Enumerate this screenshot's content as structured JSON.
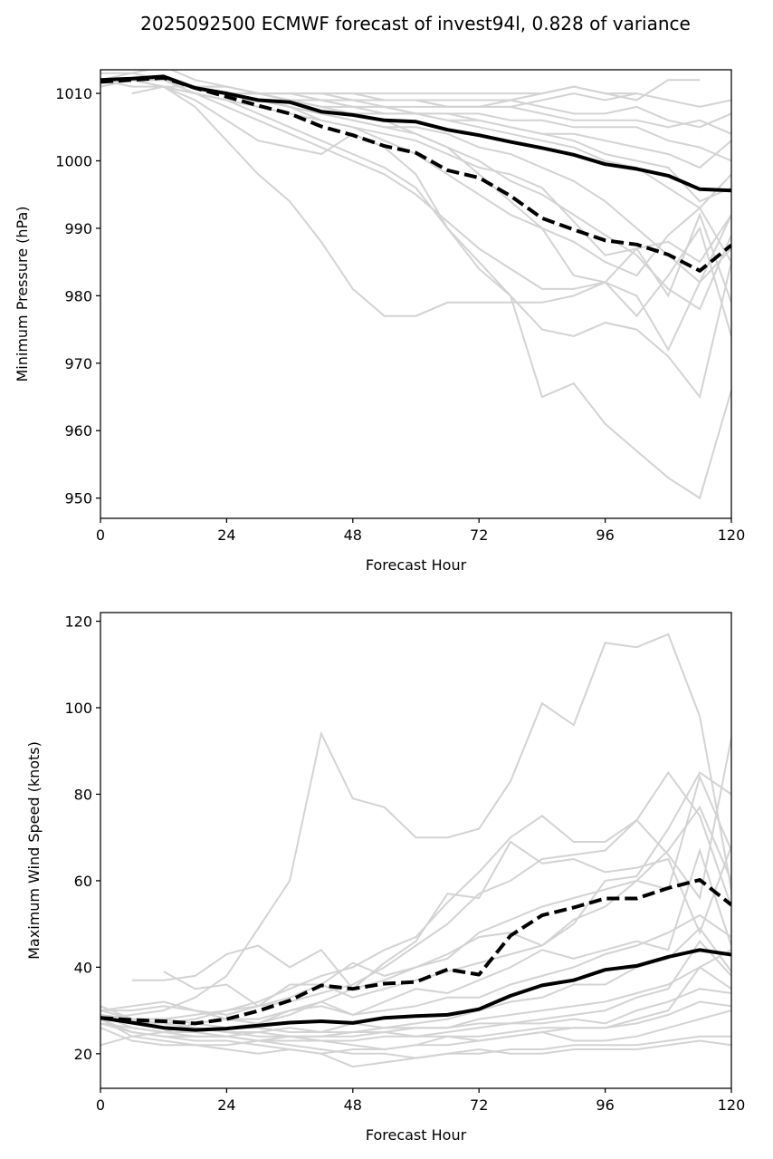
{
  "chart_data": [
    {
      "type": "line",
      "title": "2025092500 ECMWF forecast of invest94l, 0.828 of variance",
      "xlabel": "Forecast Hour",
      "ylabel": "Minimum Pressure (hPa)",
      "xlim": [
        0,
        120
      ],
      "ylim": [
        947,
        1013.5
      ],
      "xticks": [
        0,
        24,
        48,
        72,
        96,
        120
      ],
      "yticks": [
        950,
        960,
        970,
        980,
        990,
        1000,
        1010
      ],
      "grid": false,
      "x": [
        0,
        6,
        12,
        18,
        24,
        30,
        36,
        42,
        48,
        54,
        60,
        66,
        72,
        78,
        84,
        90,
        96,
        102,
        108,
        114,
        120
      ],
      "highlight_series": [
        {
          "name": "ensemble-solid",
          "style": "solid",
          "values": [
            1012,
            1012.2,
            1012.5,
            1010.8,
            1010,
            1009,
            1008.7,
            1007.3,
            1006.8,
            1006,
            1005.8,
            1004.6,
            1003.8,
            1002.8,
            1001.9,
            1000.9,
            999.5,
            998.8,
            997.8,
            995.8,
            995.6
          ]
        },
        {
          "name": "ensemble-dashed",
          "style": "dashed",
          "values": [
            1011.7,
            1012,
            1012.3,
            1010.8,
            1009.5,
            1008.2,
            1007,
            1005.1,
            1003.8,
            1002.2,
            1001.2,
            998.6,
            997.5,
            994.8,
            991.5,
            989.8,
            988.2,
            987.6,
            986.1,
            983.7,
            987.5
          ]
        }
      ],
      "member_series": [
        {
          "values": [
            1012,
            1011,
            1011,
            1010,
            1009,
            1007,
            1005,
            1003,
            1001,
            999,
            996,
            990,
            984,
            980,
            965,
            967,
            961,
            957,
            953,
            950,
            966
          ]
        },
        {
          "values": [
            1012,
            1012,
            1011,
            1008,
            1003,
            998,
            994,
            988,
            981,
            977,
            977,
            979,
            979,
            979,
            979,
            980,
            982,
            980,
            972,
            982,
            987
          ]
        },
        {
          "values": [
            1012,
            1012,
            1011,
            1009,
            1006,
            1003,
            1002,
            1001,
            1004,
            1002,
            998,
            990,
            985,
            980,
            975,
            974,
            976,
            975,
            971,
            965,
            985
          ]
        },
        {
          "values": [
            1012,
            1012,
            1012,
            1010,
            1008,
            1006,
            1004,
            1002,
            1000,
            998,
            995,
            991,
            987,
            984,
            981,
            981,
            982,
            977,
            983,
            990,
            974
          ]
        },
        {
          "values": [
            1012,
            1013,
            1014,
            1012,
            1011,
            1010,
            1009,
            1008,
            1007,
            1006,
            1004,
            1002,
            998,
            994,
            990,
            983,
            982,
            987,
            980,
            992,
            979
          ]
        },
        {
          "values": [
            1013,
            1013,
            1012,
            1011,
            1010,
            1010,
            1010,
            1010,
            1010,
            1009,
            1009,
            1009,
            1009,
            1009,
            1008,
            1007,
            1007,
            1008,
            1006,
            1005,
            1007
          ]
        },
        {
          "values": [
            1012,
            1012,
            1012,
            1011,
            1010,
            1010,
            1010,
            1009,
            1009,
            1009,
            1009,
            1008,
            1008,
            1008,
            1009,
            1010,
            1009,
            1010,
            1009,
            1008,
            1009
          ]
        },
        {
          "values": [
            1012,
            1012,
            1012,
            1011,
            1011,
            1010,
            1010,
            1010,
            1010,
            1010,
            1010,
            1010,
            1010,
            1010,
            1010,
            1011,
            1010,
            1009,
            1012,
            1012
          ]
        },
        {
          "values": [
            1011,
            1012,
            1012,
            1011,
            1010,
            1009,
            1008,
            1007,
            1007,
            1007,
            1007,
            1006,
            1006,
            1005,
            1004,
            1003,
            1001,
            1000,
            999,
            994,
            996
          ]
        },
        {
          "values": [
            1012,
            1012,
            1012,
            1011,
            1010,
            1009,
            1009,
            1008,
            1008,
            1008,
            1007,
            1007,
            1007,
            1006,
            1006,
            1005,
            1005,
            1005,
            1003,
            1002,
            1000
          ]
        },
        {
          "values": [
            1012,
            1012,
            1012,
            1011,
            1010,
            1009,
            1008,
            1007,
            1006,
            1005,
            1005,
            1004,
            1002,
            1001,
            999,
            997,
            994,
            990,
            986,
            982,
            992
          ]
        },
        {
          "values": [
            1012,
            1012,
            1012,
            1011,
            1010,
            1009,
            1008,
            1006,
            1005,
            1003,
            1001,
            998,
            995,
            992,
            990,
            988,
            985,
            983,
            989,
            993,
            985
          ]
        },
        {
          "values": [
            1012,
            1012,
            1011,
            1010,
            1009,
            1008,
            1007,
            1006,
            1005,
            1004,
            1003,
            1001,
            999,
            998,
            996,
            991,
            986,
            987,
            988,
            985,
            992
          ]
        },
        {
          "values": [
            1011,
            1012,
            1012,
            1011,
            1010,
            1010,
            1009,
            1009,
            1008,
            1008,
            1007,
            1007,
            1006,
            1005,
            1004,
            1004,
            1003,
            1002,
            1001,
            999,
            1003
          ]
        },
        {
          "values": [
            1012,
            1012,
            1012,
            1011,
            1011,
            1010,
            1010,
            1010,
            1009,
            1009,
            1009,
            1008,
            1008,
            1008,
            1007,
            1006,
            1006,
            1006,
            1005,
            1006,
            1004
          ]
        },
        {
          "values": [
            1012,
            1012,
            1012,
            1011,
            1010,
            1010,
            1009,
            1009,
            1008,
            1007,
            1007,
            1006,
            1005,
            1004,
            1003,
            1002,
            1000,
            999,
            996,
            993,
            998
          ]
        },
        {
          "values": [
            null,
            1010,
            1011,
            1011,
            1010,
            1010,
            1009,
            1009,
            1009,
            1008,
            1008,
            1008,
            1008,
            1009,
            1010,
            1011,
            1010,
            1010
          ]
        },
        {
          "values": [
            1012,
            1012,
            1012,
            1011,
            1010,
            1009,
            1008,
            1007,
            1006,
            1005,
            1004,
            1002,
            1000,
            997,
            995,
            992,
            989,
            986,
            981,
            978,
            989
          ]
        }
      ]
    },
    {
      "type": "line",
      "title": "",
      "xlabel": "Forecast Hour",
      "ylabel": "Maximum Wind Speed (knots)",
      "xlim": [
        0,
        120
      ],
      "ylim": [
        12,
        122
      ],
      "xticks": [
        0,
        24,
        48,
        72,
        96,
        120
      ],
      "yticks": [
        20,
        40,
        60,
        80,
        100,
        120
      ],
      "grid": false,
      "x": [
        0,
        6,
        12,
        18,
        24,
        30,
        36,
        42,
        48,
        54,
        60,
        66,
        72,
        78,
        84,
        90,
        96,
        102,
        108,
        114,
        120
      ],
      "highlight_series": [
        {
          "name": "ensemble-solid",
          "style": "solid",
          "values": [
            28.3,
            27.2,
            26,
            25.5,
            25.8,
            26.5,
            27.2,
            27.5,
            27.1,
            28.3,
            28.7,
            29,
            30.3,
            33.4,
            35.8,
            37,
            39.4,
            40.3,
            42.4,
            44,
            42.9
          ]
        },
        {
          "name": "ensemble-dashed",
          "style": "dashed",
          "values": [
            28.3,
            27.8,
            27.5,
            27,
            28,
            29.9,
            32.3,
            35.8,
            35,
            36.2,
            36.6,
            39.5,
            38.3,
            47.3,
            52,
            53.8,
            55.9,
            55.9,
            58.3,
            60.2,
            54.4
          ]
        }
      ],
      "member_series": [
        {
          "values": [
            28,
            29,
            30,
            33,
            38,
            49,
            60,
            94,
            79,
            77,
            70,
            70,
            72,
            83,
            101,
            96,
            115,
            114,
            117,
            98,
            58
          ]
        },
        {
          "values": [
            28,
            27,
            27,
            28,
            30,
            32,
            35,
            38,
            40,
            44,
            47,
            55,
            62,
            70,
            75,
            69,
            69,
            74,
            66,
            56,
            93
          ]
        },
        {
          "values": [
            28,
            28,
            28,
            29,
            30,
            31,
            32,
            34,
            36,
            40,
            45,
            50,
            57,
            60,
            65,
            66,
            67,
            74,
            85,
            75,
            54
          ]
        },
        {
          "values": [
            null,
            37,
            37,
            38,
            43,
            45,
            40,
            44,
            35,
            41,
            46,
            57,
            56,
            69,
            64,
            65,
            62,
            63,
            65,
            48,
            68
          ]
        },
        {
          "values": [
            null,
            null,
            39,
            35,
            36,
            31,
            36,
            36,
            41,
            38,
            40,
            43,
            47,
            48,
            45,
            50,
            60,
            61,
            72,
            85,
            80
          ]
        },
        {
          "values": [
            22,
            24,
            25,
            25,
            26,
            27,
            29,
            32,
            35,
            37,
            40,
            42,
            48,
            51,
            54,
            56,
            58,
            60,
            67,
            77,
            60
          ]
        },
        {
          "values": [
            30,
            31,
            32,
            30,
            29,
            31,
            33,
            36,
            33,
            35,
            37,
            39,
            41,
            43,
            45,
            51,
            54,
            60,
            58,
            84,
            67
          ]
        },
        {
          "values": [
            29,
            26,
            25,
            27,
            28,
            27,
            30,
            32,
            29,
            32,
            35,
            34,
            37,
            40,
            44,
            42,
            44,
            46,
            44,
            67,
            45
          ]
        },
        {
          "values": [
            30,
            30,
            31,
            30,
            28,
            28,
            30,
            31,
            29,
            30,
            31,
            33,
            33,
            36,
            38,
            40,
            43,
            45,
            48,
            52,
            47
          ]
        },
        {
          "values": [
            27,
            26,
            25,
            24,
            24,
            25,
            26,
            25,
            27,
            26,
            27,
            28,
            30,
            32,
            33,
            36,
            36,
            40,
            42,
            49,
            39
          ]
        },
        {
          "values": [
            28,
            24,
            23,
            22,
            22,
            23,
            24,
            24,
            24,
            25,
            26,
            26,
            28,
            29,
            30,
            31,
            32,
            34,
            36,
            40,
            44
          ]
        },
        {
          "values": [
            27,
            25,
            24,
            24,
            24,
            23,
            23,
            23,
            23,
            24,
            24,
            25,
            26,
            27,
            28,
            29,
            30,
            33,
            35,
            46,
            38
          ]
        },
        {
          "values": [
            26,
            23,
            22,
            22,
            21,
            20,
            21,
            20,
            21,
            21,
            22,
            24,
            23,
            24,
            25,
            26,
            26,
            28,
            30,
            40,
            35
          ]
        },
        {
          "values": [
            29,
            28,
            28,
            27,
            26,
            26,
            25,
            25,
            25,
            26,
            26,
            26,
            27,
            27,
            27,
            28,
            27,
            30,
            32,
            35,
            34
          ]
        },
        {
          "values": [
            31,
            28,
            27,
            26,
            25,
            25,
            24,
            23,
            22,
            21,
            22,
            22,
            23,
            24,
            25,
            23,
            23,
            24,
            26,
            28,
            30
          ]
        },
        {
          "values": [
            29,
            27,
            26,
            25,
            24,
            23,
            22,
            21,
            20,
            20,
            19,
            20,
            21,
            20,
            20,
            21,
            21,
            21,
            22,
            23,
            22
          ]
        },
        {
          "values": [
            28,
            25,
            24,
            23,
            23,
            22,
            21,
            20,
            17,
            18,
            19,
            20,
            20,
            21,
            21,
            22,
            22,
            22,
            23,
            24,
            24
          ]
        },
        {
          "values": [
            30,
            28,
            26,
            26,
            25,
            24,
            24,
            24,
            25,
            25,
            24,
            24,
            24,
            25,
            26,
            26,
            26,
            27,
            29,
            32,
            31
          ]
        }
      ]
    }
  ]
}
